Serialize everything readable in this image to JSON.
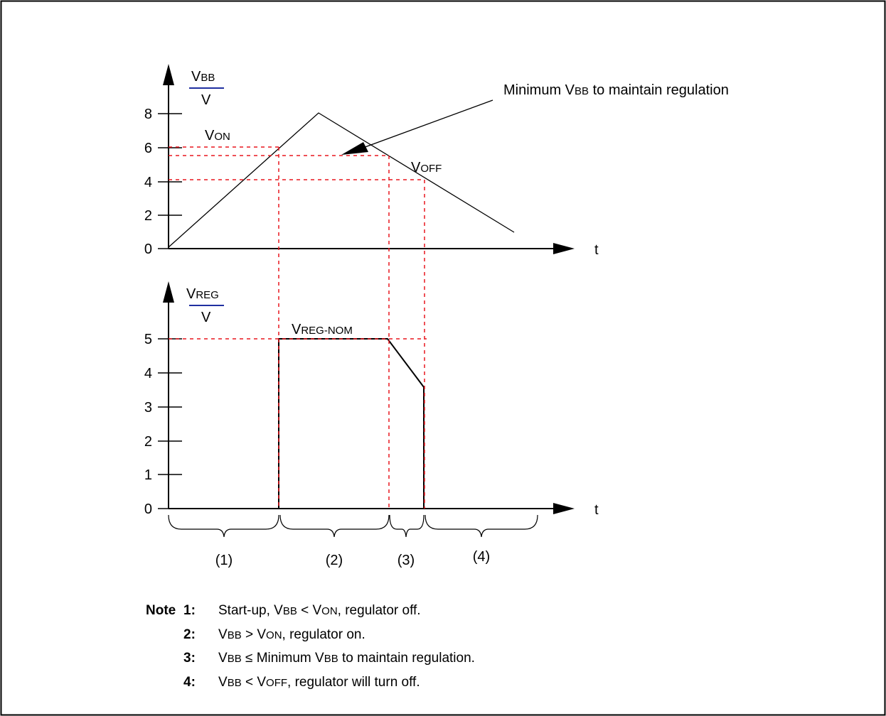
{
  "diagram": {
    "top_chart": {
      "y_label_top": "V",
      "y_label_top_sub": "BB",
      "y_label_bottom": "V",
      "x_label": "t",
      "y_ticks": [
        "0",
        "2",
        "4",
        "6",
        "8"
      ],
      "v_on_main": "V",
      "v_on_sub": "ON",
      "v_off_main": "V",
      "v_off_sub": "OFF",
      "callout_pre": "Minimum V",
      "callout_sub": "BB",
      "callout_post": " to maintain regulation"
    },
    "bottom_chart": {
      "y_label_top": "V",
      "y_label_top_sub": "REG",
      "y_label_bottom": "V",
      "x_label": "t",
      "y_ticks": [
        "0",
        "1",
        "2",
        "3",
        "4",
        "5"
      ],
      "vreg_nom_main": "V",
      "vreg_nom_sub": "REG-NOM"
    },
    "regions": [
      "(1)",
      "(2)",
      "(3)",
      "(4)"
    ],
    "colors": {
      "guide_dash": "#e8161e",
      "fraction_bar": "#1f2fa0",
      "ink": "#000000"
    }
  },
  "notes": {
    "label": "Note",
    "items": [
      {
        "num": "1:",
        "text": "Start-up, V",
        "s1": "BB",
        "t2": " < V",
        "s2": "ON",
        "t3": ", regulator off."
      },
      {
        "num": "2:",
        "text": "V",
        "s1": "BB",
        "t2": " > V",
        "s2": "ON",
        "t3": ", regulator on."
      },
      {
        "num": "3:",
        "text": "V",
        "s1": "BB",
        "t2": " ≤  Minimum V",
        "s2": "BB",
        "t3": " to maintain regulation."
      },
      {
        "num": "4:",
        "text": "V",
        "s1": "BB",
        "t2": " < V",
        "s2": "OFF",
        "t3": ", regulator will turn off."
      }
    ]
  }
}
